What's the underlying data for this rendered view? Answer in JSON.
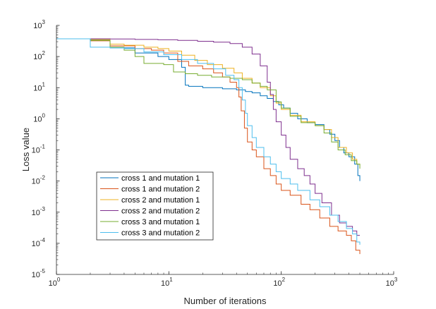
{
  "chart_data": {
    "type": "line",
    "title": "",
    "xlabel": "Number of iterations",
    "ylabel": "Loss value",
    "xscale": "log",
    "yscale": "log",
    "xlim": [
      1,
      1000
    ],
    "ylim": [
      1e-05,
      1000
    ],
    "grid": false,
    "legend_position": "lower-left",
    "x_ticks": [
      {
        "base": "10",
        "exp": "0",
        "value": 1
      },
      {
        "base": "10",
        "exp": "1",
        "value": 10
      },
      {
        "base": "10",
        "exp": "2",
        "value": 100
      },
      {
        "base": "10",
        "exp": "3",
        "value": 1000
      }
    ],
    "y_ticks": [
      {
        "base": "10",
        "exp": "-5",
        "value": 1e-05
      },
      {
        "base": "10",
        "exp": "-4",
        "value": 0.0001
      },
      {
        "base": "10",
        "exp": "-3",
        "value": 0.001
      },
      {
        "base": "10",
        "exp": "-2",
        "value": 0.01
      },
      {
        "base": "10",
        "exp": "-1",
        "value": 0.1
      },
      {
        "base": "10",
        "exp": "0",
        "value": 1
      },
      {
        "base": "10",
        "exp": "1",
        "value": 10
      },
      {
        "base": "10",
        "exp": "2",
        "value": 100
      },
      {
        "base": "10",
        "exp": "3",
        "value": 1000
      }
    ],
    "series": [
      {
        "name": "cross 1 and mutation 1",
        "color": "#0072BD",
        "points": [
          [
            1,
            370
          ],
          [
            2,
            340
          ],
          [
            3,
            190
          ],
          [
            5,
            130
          ],
          [
            8,
            100
          ],
          [
            10,
            80
          ],
          [
            13,
            45
          ],
          [
            14,
            12
          ],
          [
            15,
            11
          ],
          [
            20,
            10
          ],
          [
            30,
            9.2
          ],
          [
            40,
            8.5
          ],
          [
            48,
            7.5
          ],
          [
            55,
            6.8
          ],
          [
            65,
            5.5
          ],
          [
            75,
            4.5
          ],
          [
            85,
            3.6
          ],
          [
            95,
            2.8
          ],
          [
            105,
            2.2
          ],
          [
            120,
            1.5
          ],
          [
            140,
            1.0
          ],
          [
            170,
            0.75
          ],
          [
            200,
            0.65
          ],
          [
            240,
            0.45
          ],
          [
            270,
            0.32
          ],
          [
            300,
            0.2
          ],
          [
            330,
            0.12
          ],
          [
            360,
            0.08
          ],
          [
            400,
            0.06
          ],
          [
            450,
            0.035
          ],
          [
            480,
            0.015
          ],
          [
            500,
            0.01
          ]
        ]
      },
      {
        "name": "cross 1 and mutation 2",
        "color": "#D95319",
        "points": [
          [
            1,
            370
          ],
          [
            2,
            320
          ],
          [
            3,
            220
          ],
          [
            5,
            180
          ],
          [
            7,
            160
          ],
          [
            9,
            130
          ],
          [
            12,
            70
          ],
          [
            15,
            50
          ],
          [
            20,
            40
          ],
          [
            25,
            30
          ],
          [
            30,
            22
          ],
          [
            35,
            15
          ],
          [
            40,
            10
          ],
          [
            42,
            5
          ],
          [
            44,
            1.8
          ],
          [
            47,
            0.5
          ],
          [
            50,
            0.18
          ],
          [
            55,
            0.1
          ],
          [
            60,
            0.06
          ],
          [
            70,
            0.025
          ],
          [
            80,
            0.015
          ],
          [
            90,
            0.008
          ],
          [
            100,
            0.005
          ],
          [
            120,
            0.0035
          ],
          [
            150,
            0.0018
          ],
          [
            180,
            0.0012
          ],
          [
            220,
            0.00065
          ],
          [
            270,
            0.00035
          ],
          [
            320,
            0.00025
          ],
          [
            380,
            0.00018
          ],
          [
            420,
            0.00012
          ],
          [
            460,
            6e-05
          ],
          [
            500,
            4.5e-05
          ]
        ]
      },
      {
        "name": "cross 2 and mutation 1",
        "color": "#EDB120",
        "points": [
          [
            1,
            370
          ],
          [
            2,
            350
          ],
          [
            3,
            250
          ],
          [
            4,
            230
          ],
          [
            6,
            200
          ],
          [
            8,
            180
          ],
          [
            10,
            150
          ],
          [
            13,
            110
          ],
          [
            17,
            75
          ],
          [
            22,
            55
          ],
          [
            30,
            42
          ],
          [
            38,
            30
          ],
          [
            45,
            20
          ],
          [
            55,
            14
          ],
          [
            65,
            10
          ],
          [
            80,
            5.5
          ],
          [
            90,
            3.2
          ],
          [
            100,
            2.0
          ],
          [
            120,
            1.3
          ],
          [
            150,
            0.8
          ],
          [
            200,
            0.6
          ],
          [
            240,
            0.45
          ],
          [
            280,
            0.25
          ],
          [
            320,
            0.12
          ],
          [
            380,
            0.08
          ],
          [
            430,
            0.05
          ],
          [
            470,
            0.035
          ],
          [
            500,
            0.03
          ]
        ]
      },
      {
        "name": "cross 2 and mutation 2",
        "color": "#7E2F8E",
        "points": [
          [
            1,
            370
          ],
          [
            2,
            370
          ],
          [
            3,
            365
          ],
          [
            5,
            355
          ],
          [
            8,
            345
          ],
          [
            12,
            330
          ],
          [
            18,
            310
          ],
          [
            25,
            290
          ],
          [
            35,
            260
          ],
          [
            45,
            200
          ],
          [
            55,
            120
          ],
          [
            65,
            50
          ],
          [
            75,
            15
          ],
          [
            80,
            6
          ],
          [
            85,
            2.0
          ],
          [
            90,
            0.8
          ],
          [
            100,
            0.3
          ],
          [
            110,
            0.12
          ],
          [
            120,
            0.05
          ],
          [
            140,
            0.025
          ],
          [
            160,
            0.015
          ],
          [
            180,
            0.008
          ],
          [
            200,
            0.004
          ],
          [
            230,
            0.002
          ],
          [
            280,
            0.0008
          ],
          [
            330,
            0.00045
          ],
          [
            380,
            0.00035
          ],
          [
            430,
            0.00025
          ],
          [
            470,
            0.00018
          ],
          [
            500,
            0.00018
          ]
        ]
      },
      {
        "name": "cross 3 and mutation 1",
        "color": "#77AC30",
        "points": [
          [
            1,
            370
          ],
          [
            2,
            330
          ],
          [
            3,
            200
          ],
          [
            4,
            160
          ],
          [
            5,
            100
          ],
          [
            6,
            60
          ],
          [
            9,
            55
          ],
          [
            11,
            32
          ],
          [
            14,
            28
          ],
          [
            18,
            25
          ],
          [
            24,
            22
          ],
          [
            35,
            20
          ],
          [
            45,
            18
          ],
          [
            55,
            14
          ],
          [
            65,
            11
          ],
          [
            75,
            8.5
          ],
          [
            90,
            3.5
          ],
          [
            100,
            2.2
          ],
          [
            120,
            1.2
          ],
          [
            150,
            0.75
          ],
          [
            200,
            0.6
          ],
          [
            240,
            0.35
          ],
          [
            280,
            0.18
          ],
          [
            320,
            0.1
          ],
          [
            370,
            0.07
          ],
          [
            420,
            0.045
          ],
          [
            470,
            0.035
          ],
          [
            500,
            0.025
          ]
        ]
      },
      {
        "name": "cross 3 and mutation 2",
        "color": "#4DBEEE",
        "points": [
          [
            1,
            370
          ],
          [
            2,
            200
          ],
          [
            3,
            190
          ],
          [
            4,
            180
          ],
          [
            6,
            140
          ],
          [
            9,
            115
          ],
          [
            13,
            80
          ],
          [
            18,
            60
          ],
          [
            25,
            40
          ],
          [
            32,
            25
          ],
          [
            38,
            18
          ],
          [
            42,
            10
          ],
          [
            45,
            4
          ],
          [
            48,
            1.5
          ],
          [
            50,
            0.6
          ],
          [
            55,
            0.25
          ],
          [
            60,
            0.12
          ],
          [
            70,
            0.06
          ],
          [
            80,
            0.035
          ],
          [
            90,
            0.02
          ],
          [
            100,
            0.012
          ],
          [
            120,
            0.008
          ],
          [
            140,
            0.005
          ],
          [
            180,
            0.0025
          ],
          [
            220,
            0.0015
          ],
          [
            270,
            0.0008
          ],
          [
            320,
            0.0005
          ],
          [
            380,
            0.0003
          ],
          [
            430,
            0.0002
          ],
          [
            470,
            0.00011
          ],
          [
            500,
            9e-05
          ]
        ]
      }
    ]
  }
}
